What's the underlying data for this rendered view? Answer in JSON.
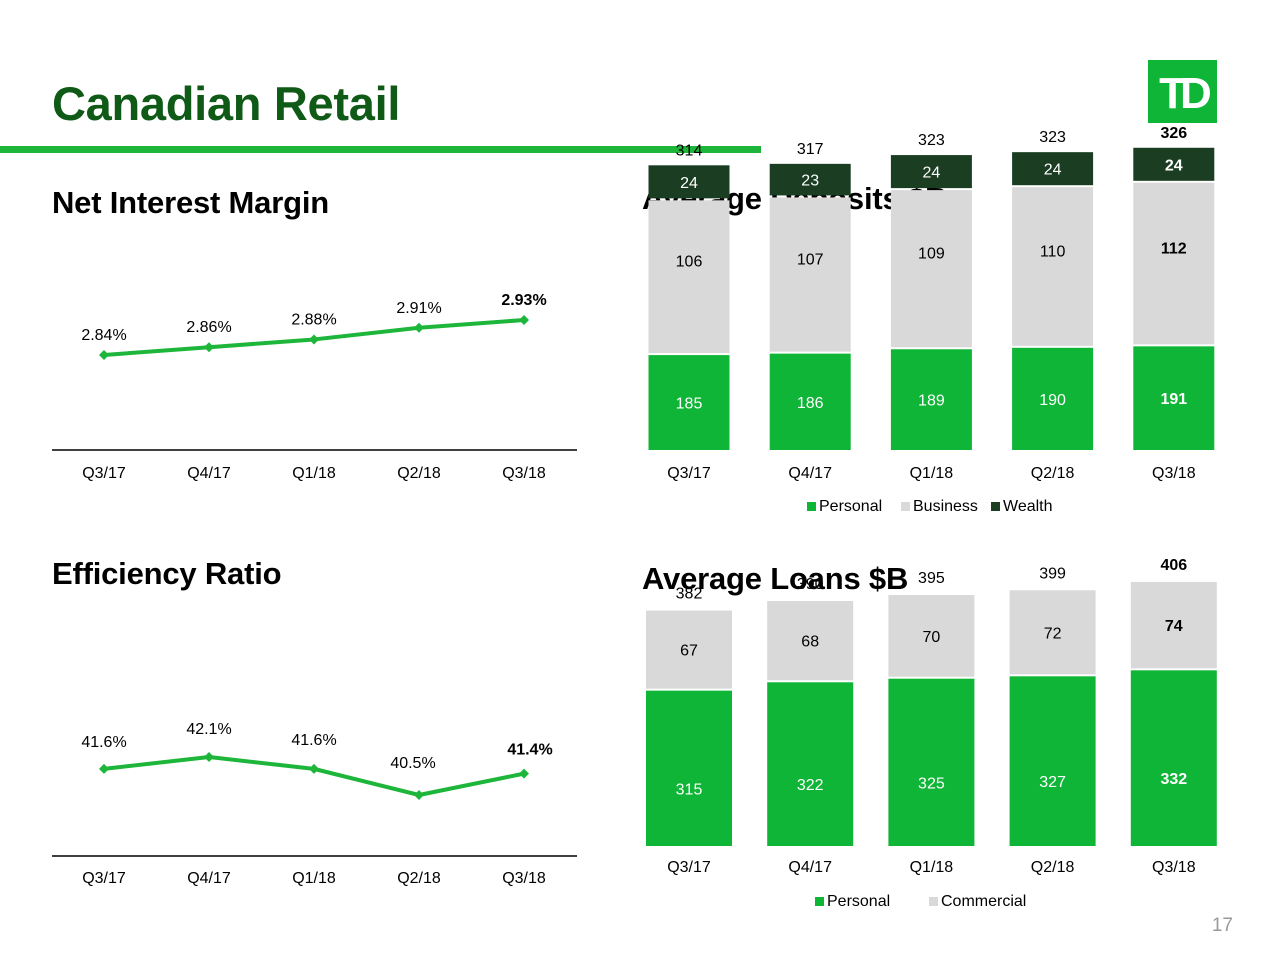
{
  "slide": {
    "title": "Canadian Retail",
    "page_number": "17",
    "logo_text": "TD"
  },
  "colors": {
    "title_green": "#0f5a16",
    "accent_green": "#1db63b",
    "bar_green": "#0fb536",
    "business_grey": "#d9d9d9",
    "wealth_dark": "#1b3d22"
  },
  "chart_data": [
    {
      "id": "nim",
      "type": "line",
      "title": "Net Interest Margin",
      "categories": [
        "Q3/17",
        "Q4/17",
        "Q1/18",
        "Q2/18",
        "Q3/18"
      ],
      "values": [
        2.84,
        2.86,
        2.88,
        2.91,
        2.93
      ],
      "labels": [
        "2.84%",
        "2.86%",
        "2.88%",
        "2.91%",
        "2.93%"
      ],
      "highlight_last": true,
      "grid": false
    },
    {
      "id": "efficiency",
      "type": "line",
      "title": "Efficiency Ratio",
      "categories": [
        "Q3/17",
        "Q4/17",
        "Q1/18",
        "Q2/18",
        "Q3/18"
      ],
      "values": [
        41.6,
        42.1,
        41.6,
        40.5,
        41.4
      ],
      "labels": [
        "41.6%",
        "42.1%",
        "41.6%",
        "40.5%",
        "41.4%"
      ],
      "highlight_last": true,
      "grid": false
    },
    {
      "id": "deposits",
      "type": "bar",
      "stacked": true,
      "title": "Average Deposits $B",
      "categories": [
        "Q3/17",
        "Q4/17",
        "Q1/18",
        "Q2/18",
        "Q3/18"
      ],
      "series": [
        {
          "name": "Personal",
          "values": [
            185,
            186,
            189,
            190,
            191
          ]
        },
        {
          "name": "Business",
          "values": [
            106,
            107,
            109,
            110,
            112
          ]
        },
        {
          "name": "Wealth",
          "values": [
            24,
            23,
            24,
            24,
            24
          ]
        }
      ],
      "totals": [
        314,
        317,
        323,
        323,
        326
      ],
      "legend": "bottom-right",
      "highlight_last": true,
      "grid": false
    },
    {
      "id": "loans",
      "type": "bar",
      "stacked": true,
      "title": "Average Loans $B",
      "categories": [
        "Q3/17",
        "Q4/17",
        "Q1/18",
        "Q2/18",
        "Q3/18"
      ],
      "series": [
        {
          "name": "Personal",
          "values": [
            315,
            322,
            325,
            327,
            332
          ]
        },
        {
          "name": "Commercial",
          "values": [
            67,
            68,
            70,
            72,
            74
          ]
        }
      ],
      "totals": [
        382,
        390,
        395,
        399,
        406
      ],
      "legend": "bottom-right",
      "highlight_last": true,
      "grid": false
    }
  ]
}
